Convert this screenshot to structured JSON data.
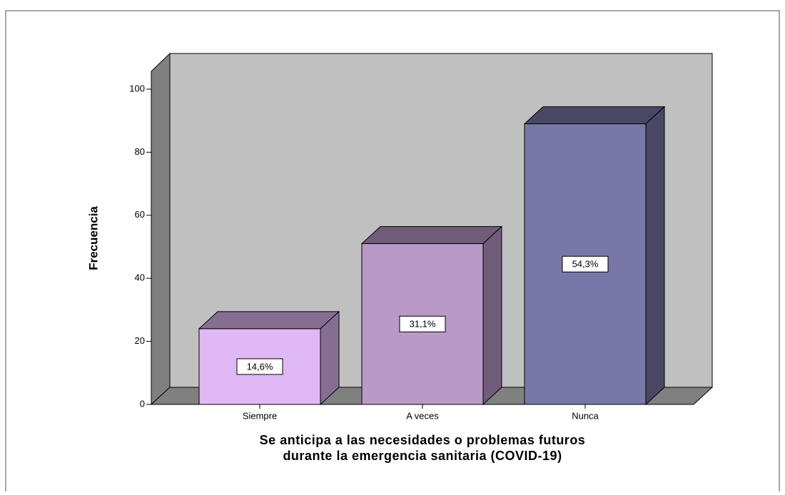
{
  "chart_data": {
    "type": "bar3d",
    "y_label": "Frecuencia",
    "x_label": [
      "Se anticipa a las necesidades o problemas futuros",
      "durante la emergencia sanitaria (COVID-19)"
    ],
    "categories": [
      "Siempre",
      "A veces",
      "Nunca"
    ],
    "values": [
      24,
      51,
      89
    ],
    "percentages": [
      14.6,
      31.1,
      54.3
    ],
    "percentage_labels": [
      "14,6%",
      "31,1%",
      "54,3%"
    ],
    "colors": [
      "#dfb8f4",
      "#b899c8",
      "#7878a8"
    ],
    "ylim": [
      0,
      105
    ],
    "yticks": [
      0,
      20,
      40,
      60,
      80,
      100
    ]
  }
}
